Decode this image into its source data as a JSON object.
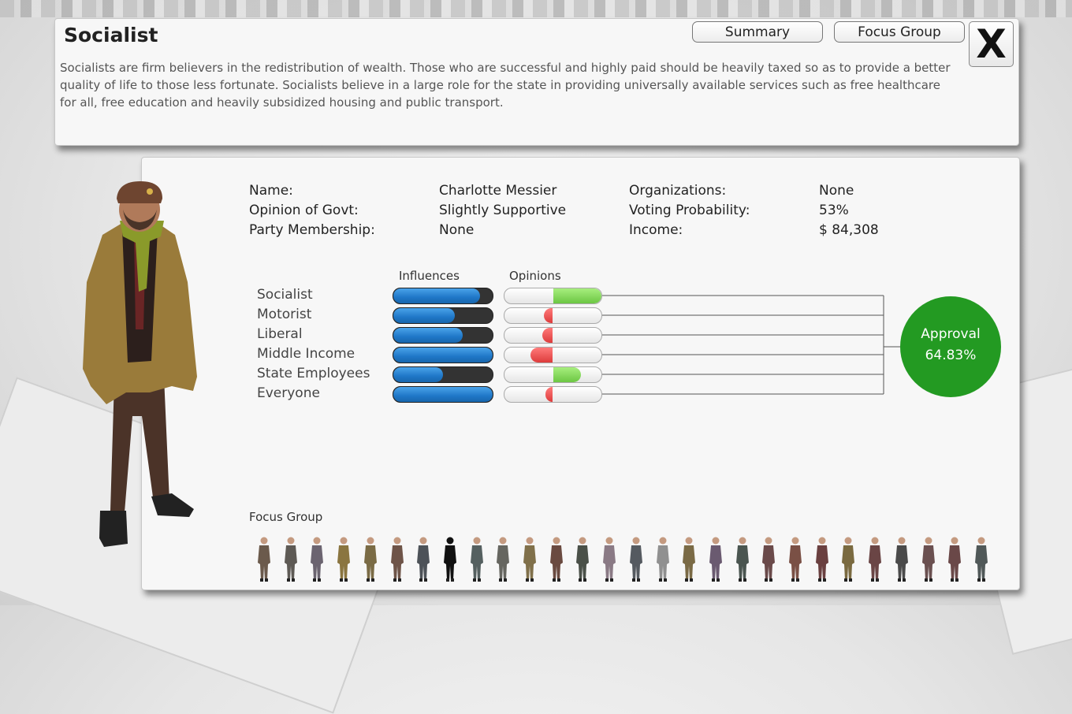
{
  "header": {
    "title": "Socialist",
    "description": "Socialists are firm believers in the redistribution of wealth. Those who are successful and highly paid should be heavily taxed so as to provide a better quality of life to those less fortunate. Socialists believe in a large role for the state in providing universally available services such as free healthcare for all, free education and heavily subsidized housing and public transport.",
    "summary_label": "Summary",
    "focus_group_label": "Focus Group",
    "close_label": "X"
  },
  "info": {
    "name_label": "Name:",
    "name_value": "Charlotte Messier",
    "opinion_label": "Opinion of Govt:",
    "opinion_value": "Slightly Supportive",
    "party_label": "Party Membership:",
    "party_value": "None",
    "org_label": "Organizations:",
    "org_value": "None",
    "voting_label": "Voting Probability:",
    "voting_value": "53%",
    "income_label": "Income:",
    "income_value": "$ 84,308"
  },
  "influences_header": "Influences",
  "opinions_header": "Opinions",
  "groups": [
    {
      "label": "Socialist",
      "influence": 0.87,
      "opinion": 0.5
    },
    {
      "label": "Motorist",
      "influence": 0.62,
      "opinion": -0.09
    },
    {
      "label": "Liberal",
      "influence": 0.7,
      "opinion": -0.11
    },
    {
      "label": "Middle Income",
      "influence": 1.0,
      "opinion": -0.23
    },
    {
      "label": "State Employees",
      "influence": 0.5,
      "opinion": 0.29
    },
    {
      "label": "Everyone",
      "influence": 1.0,
      "opinion": -0.08
    }
  ],
  "approval": {
    "label": "Approval",
    "value": "64.83%"
  },
  "focus_group": {
    "title": "Focus Group",
    "selected_index": 7,
    "colors": [
      "#6b5a4c",
      "#5e5a55",
      "#6b6470",
      "#8a7540",
      "#7a6b45",
      "#6e5448",
      "#4d5258",
      "#111111",
      "#556060",
      "#666660",
      "#80704a",
      "#6a4a40",
      "#4a5048",
      "#8a7a85",
      "#555a60",
      "#909090",
      "#7a6a45",
      "#6a5a70",
      "#4a5550",
      "#6a4a4a",
      "#7a5045",
      "#6a4040",
      "#7a6a40",
      "#6a4545",
      "#4a4a4a",
      "#6a5050",
      "#6a4848",
      "#505858"
    ]
  },
  "colors": {
    "approval_green": "#239a22",
    "influence_blue": "#1f77c7",
    "opinion_positive": "#6cc743",
    "opinion_negative": "#dd3c3c"
  }
}
